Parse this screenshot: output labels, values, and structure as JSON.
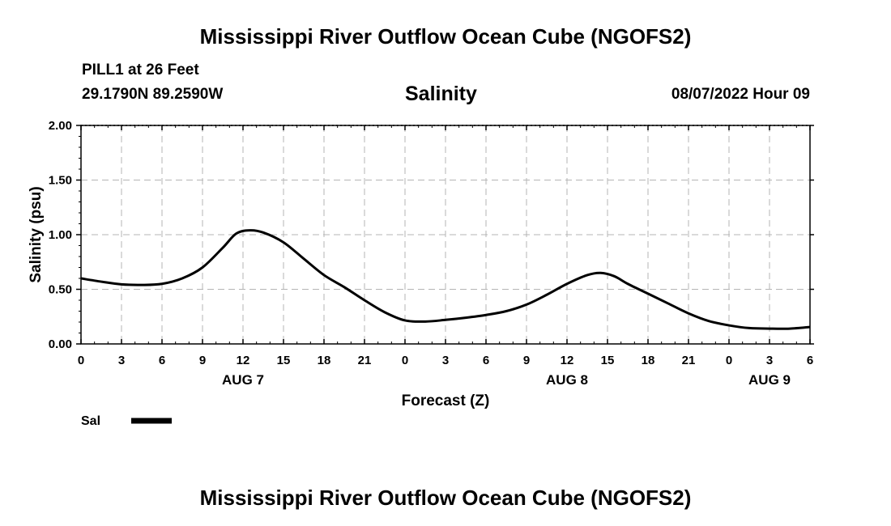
{
  "header": {
    "title": "Mississippi River Outflow Ocean Cube (NGOFS2)",
    "station": "PILL1 at 26 Feet",
    "coords": "29.1790N  89.2590W",
    "plot_title": "Salinity",
    "timestamp": "08/07/2022 Hour 09"
  },
  "footer": {
    "title": "Mississippi River Outflow Ocean Cube (NGOFS2)"
  },
  "chart_data": {
    "type": "line",
    "title": "Salinity",
    "xlabel": "Forecast (Z)",
    "ylabel": "Salinity (psu)",
    "xlim": [
      0,
      54
    ],
    "ylim": [
      0,
      2
    ],
    "grid": true,
    "x_tick_values": [
      0,
      3,
      6,
      9,
      12,
      15,
      18,
      21,
      24,
      27,
      30,
      33,
      36,
      39,
      42,
      45,
      48,
      51,
      54
    ],
    "x_tick_labels": [
      "0",
      "3",
      "6",
      "9",
      "12",
      "15",
      "18",
      "21",
      "0",
      "3",
      "6",
      "9",
      "12",
      "15",
      "18",
      "21",
      "0",
      "3",
      "6"
    ],
    "y_tick_values": [
      0,
      0.5,
      1.0,
      1.5,
      2.0
    ],
    "y_tick_labels": [
      "0.00",
      "0.50",
      "1.00",
      "1.50",
      "2.00"
    ],
    "date_labels": [
      {
        "x": 12,
        "label": "AUG 7"
      },
      {
        "x": 36,
        "label": "AUG 8"
      },
      {
        "x": 51,
        "label": "AUG 9"
      }
    ],
    "legend": {
      "label": "Sal",
      "position": "bottom-left"
    },
    "series": [
      {
        "name": "Sal",
        "x": [
          0,
          1.5,
          3,
          4.5,
          6,
          7.5,
          9,
          10.5,
          11.5,
          12.5,
          13.5,
          15,
          16.5,
          18,
          19.5,
          21,
          22.5,
          24,
          25.5,
          27,
          28.5,
          30,
          31.5,
          33,
          34.5,
          36,
          37.5,
          38.5,
          39.5,
          40.5,
          42,
          43.5,
          45,
          46.5,
          48,
          49.5,
          51,
          52.5,
          54
        ],
        "values": [
          0.6,
          0.57,
          0.545,
          0.54,
          0.55,
          0.6,
          0.7,
          0.88,
          1.01,
          1.04,
          1.02,
          0.93,
          0.78,
          0.63,
          0.52,
          0.4,
          0.29,
          0.215,
          0.205,
          0.22,
          0.24,
          0.265,
          0.3,
          0.36,
          0.45,
          0.55,
          0.63,
          0.65,
          0.62,
          0.55,
          0.46,
          0.37,
          0.28,
          0.21,
          0.17,
          0.145,
          0.14,
          0.14,
          0.155
        ]
      }
    ]
  }
}
